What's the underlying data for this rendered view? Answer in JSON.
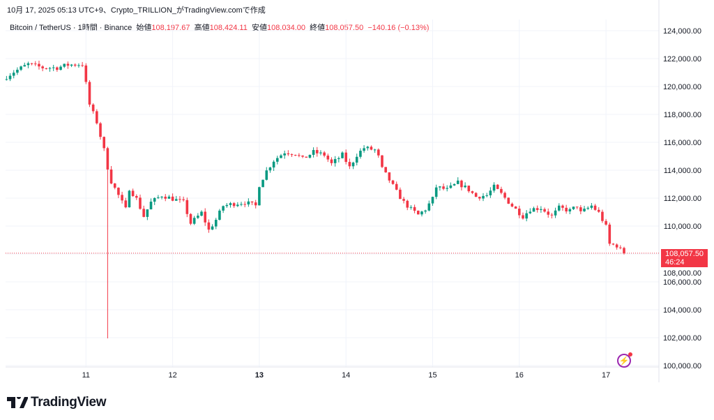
{
  "caption": "10月 17, 2025 05:13 UTC+9、Crypto_TRILLION_がTradingView.comで作成",
  "legend": {
    "symbol": "Bitcoin / TetherUS · 1時間 · Binance",
    "open_label": "始値",
    "open": "108,197.67",
    "high_label": "高値",
    "high": "108,424.11",
    "low_label": "安値",
    "low": "108,034.00",
    "close_label": "終値",
    "close": "108,057.50",
    "change": "−140.16 (−0.13%)"
  },
  "current_price": {
    "price": "108,057.50",
    "countdown": "46:24"
  },
  "brand": "TradingView",
  "colors": {
    "up": "#089981",
    "down": "#f23645",
    "grid": "#f0f3fa",
    "accent": "#9c27b0"
  },
  "chart_data": {
    "type": "candlestick",
    "interval": "1h",
    "ylim": [
      100000,
      124000
    ],
    "price_ticks": [
      "124,000.00",
      "122,000.00",
      "120,000.00",
      "118,000.00",
      "116,000.00",
      "114,000.00",
      "112,000.00",
      "110,000.00",
      "108,000.00",
      "106,000.00",
      "104,000.00",
      "102,000.00",
      "100,000.00"
    ],
    "price_tick_values": [
      124000,
      122000,
      120000,
      118000,
      116000,
      114000,
      112000,
      110000,
      108000,
      106000,
      104000,
      102000,
      100000
    ],
    "time_ticks": [
      "11",
      "12",
      "13",
      "14",
      "15",
      "16",
      "17"
    ],
    "time_tick_hours": [
      24,
      48,
      72,
      96,
      120,
      144,
      168
    ],
    "close_path_hours_from_oct10": [
      [
        2,
        120700
      ],
      [
        4,
        121050
      ],
      [
        8,
        121600
      ],
      [
        12,
        121350
      ],
      [
        16,
        121350
      ],
      [
        19,
        121550
      ],
      [
        23,
        121600
      ],
      [
        24,
        120200
      ],
      [
        25,
        118700
      ],
      [
        27,
        117450
      ],
      [
        29,
        115450
      ],
      [
        30,
        114200
      ],
      [
        31,
        113200
      ],
      [
        33,
        112200
      ],
      [
        35,
        111200
      ],
      [
        36,
        112700
      ],
      [
        38,
        111950
      ],
      [
        40,
        110700
      ],
      [
        42,
        111700
      ],
      [
        45,
        112200
      ],
      [
        48,
        111950
      ],
      [
        51,
        111700
      ],
      [
        53,
        110200
      ],
      [
        56,
        110950
      ],
      [
        58,
        109700
      ],
      [
        60,
        110450
      ],
      [
        62,
        111450
      ],
      [
        65,
        111600
      ],
      [
        68,
        111700
      ],
      [
        71,
        111450
      ],
      [
        72,
        112950
      ],
      [
        74,
        113950
      ],
      [
        76,
        114700
      ],
      [
        79,
        115300
      ],
      [
        82,
        115200
      ],
      [
        84,
        114800
      ],
      [
        87,
        115300
      ],
      [
        90,
        115100
      ],
      [
        92,
        114450
      ],
      [
        95,
        115100
      ],
      [
        97,
        114200
      ],
      [
        99,
        115100
      ],
      [
        101,
        115600
      ],
      [
        104,
        115450
      ],
      [
        105,
        114950
      ],
      [
        106,
        114100
      ],
      [
        108,
        113300
      ],
      [
        110,
        112450
      ],
      [
        112,
        111700
      ],
      [
        114,
        111200
      ],
      [
        116,
        110800
      ],
      [
        118,
        111200
      ],
      [
        120,
        111950
      ],
      [
        121,
        112800
      ],
      [
        124,
        112600
      ],
      [
        127,
        113100
      ],
      [
        130,
        112600
      ],
      [
        132,
        112100
      ],
      [
        135,
        112200
      ],
      [
        137,
        112800
      ],
      [
        139,
        112300
      ],
      [
        142,
        111450
      ],
      [
        145,
        110700
      ],
      [
        147,
        111200
      ],
      [
        150,
        111300
      ],
      [
        153,
        110700
      ],
      [
        155,
        111300
      ],
      [
        158,
        111100
      ],
      [
        160,
        111450
      ],
      [
        161,
        110950
      ],
      [
        164,
        111450
      ],
      [
        166,
        110950
      ],
      [
        168,
        109950
      ],
      [
        169,
        108700
      ],
      [
        171,
        108600
      ],
      [
        172,
        108300
      ],
      [
        173,
        108057.5
      ]
    ],
    "notable_low": {
      "hour": 30,
      "price": 101950
    }
  }
}
